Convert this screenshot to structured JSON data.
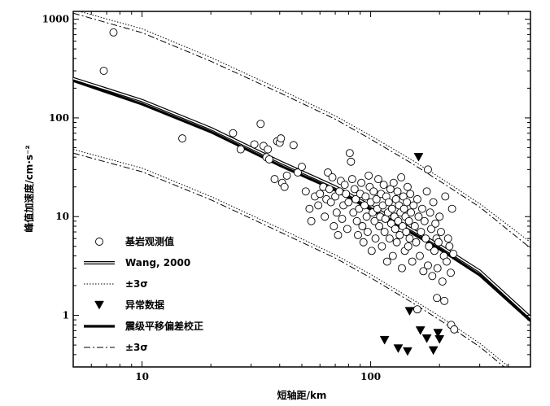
{
  "chart_data": {
    "type": "scatter",
    "xlabel": "短轴距/km",
    "ylabel": "峰值加速度/cm·s⁻²",
    "x_scale": "log",
    "y_scale": "log",
    "xlim": [
      5,
      500
    ],
    "ylim": [
      0.3,
      1200
    ],
    "x_ticks": [
      10,
      100
    ],
    "y_ticks": [
      1,
      10,
      100,
      1000
    ],
    "grid": false,
    "legend_position": "bottom-left",
    "series": [
      {
        "name": "基岩观测值",
        "kind": "scatter",
        "marker": "open-circle",
        "points": [
          [
            6.8,
            300
          ],
          [
            7.5,
            735
          ],
          [
            15,
            62
          ],
          [
            25,
            70
          ],
          [
            27,
            48
          ],
          [
            31,
            54
          ],
          [
            33,
            87
          ],
          [
            34,
            52
          ],
          [
            35,
            40
          ],
          [
            35.5,
            48
          ],
          [
            36,
            38
          ],
          [
            38,
            24
          ],
          [
            39,
            58
          ],
          [
            40,
            56
          ],
          [
            40.5,
            62
          ],
          [
            41,
            22
          ],
          [
            42,
            20
          ],
          [
            43,
            26
          ],
          [
            46,
            53
          ],
          [
            48,
            28
          ],
          [
            50,
            32
          ],
          [
            52,
            18
          ],
          [
            54,
            12
          ],
          [
            55,
            9
          ],
          [
            57,
            16
          ],
          [
            59,
            13
          ],
          [
            60,
            17
          ],
          [
            62,
            20
          ],
          [
            63,
            10
          ],
          [
            64,
            15
          ],
          [
            65,
            28
          ],
          [
            66,
            19
          ],
          [
            67,
            14
          ],
          [
            68,
            25
          ],
          [
            69,
            8
          ],
          [
            70,
            16
          ],
          [
            71,
            11
          ],
          [
            72,
            6.5
          ],
          [
            73,
            18
          ],
          [
            74,
            23
          ],
          [
            75,
            9.5
          ],
          [
            76,
            13
          ],
          [
            77,
            21
          ],
          [
            78,
            17
          ],
          [
            79,
            7.5
          ],
          [
            80,
            14
          ],
          [
            81,
            44
          ],
          [
            82,
            36
          ],
          [
            83,
            24
          ],
          [
            84,
            11
          ],
          [
            85,
            19
          ],
          [
            86,
            15
          ],
          [
            87,
            9
          ],
          [
            88,
            6.5
          ],
          [
            89,
            12
          ],
          [
            90,
            17
          ],
          [
            91,
            22
          ],
          [
            92,
            8
          ],
          [
            93,
            5.5
          ],
          [
            94,
            13
          ],
          [
            95,
            16
          ],
          [
            96,
            10
          ],
          [
            97,
            7
          ],
          [
            98,
            26
          ],
          [
            99,
            20
          ],
          [
            100,
            14
          ],
          [
            101,
            4.5
          ],
          [
            102,
            11
          ],
          [
            103,
            18
          ],
          [
            104,
            9
          ],
          [
            105,
            6
          ],
          [
            106,
            15
          ],
          [
            107,
            12
          ],
          [
            108,
            24
          ],
          [
            109,
            8
          ],
          [
            110,
            10
          ],
          [
            111,
            17
          ],
          [
            112,
            5
          ],
          [
            113,
            13
          ],
          [
            114,
            21
          ],
          [
            115,
            7
          ],
          [
            116,
            9.5
          ],
          [
            117,
            16
          ],
          [
            118,
            3.5
          ],
          [
            119,
            11
          ],
          [
            120,
            14
          ],
          [
            121,
            6
          ],
          [
            122,
            19
          ],
          [
            123,
            8.5
          ],
          [
            124,
            12
          ],
          [
            125,
            4
          ],
          [
            126,
            22
          ],
          [
            127,
            10
          ],
          [
            128,
            7.5
          ],
          [
            129,
            15
          ],
          [
            130,
            5.5
          ],
          [
            131,
            18
          ],
          [
            132,
            9
          ],
          [
            133,
            13
          ],
          [
            134,
            6.5
          ],
          [
            135,
            11
          ],
          [
            136,
            25
          ],
          [
            137,
            3
          ],
          [
            138,
            8
          ],
          [
            139,
            16
          ],
          [
            140,
            12
          ],
          [
            141,
            4.5
          ],
          [
            142,
            10
          ],
          [
            143,
            7
          ],
          [
            144,
            14
          ],
          [
            145,
            20
          ],
          [
            146,
            5
          ],
          [
            147,
            9
          ],
          [
            148,
            6
          ],
          [
            149,
            17
          ],
          [
            150,
            11
          ],
          [
            152,
            3.5
          ],
          [
            154,
            13
          ],
          [
            156,
            8
          ],
          [
            158,
            5.5
          ],
          [
            160,
            15
          ],
          [
            162,
            10
          ],
          [
            164,
            4
          ],
          [
            166,
            7
          ],
          [
            168,
            12
          ],
          [
            170,
            2.8
          ],
          [
            172,
            9
          ],
          [
            174,
            6
          ],
          [
            176,
            18
          ],
          [
            178,
            3.2
          ],
          [
            180,
            5
          ],
          [
            182,
            11
          ],
          [
            184,
            7.5
          ],
          [
            186,
            2.5
          ],
          [
            188,
            14
          ],
          [
            190,
            4.5
          ],
          [
            192,
            8.5
          ],
          [
            194,
            6
          ],
          [
            196,
            3
          ],
          [
            198,
            5.5
          ],
          [
            200,
            10
          ],
          [
            203,
            7
          ],
          [
            206,
            2.2
          ],
          [
            209,
            4
          ],
          [
            212,
            16
          ],
          [
            215,
            3.5
          ],
          [
            218,
            6
          ],
          [
            221,
            5
          ],
          [
            224,
            2.7
          ],
          [
            227,
            12
          ],
          [
            230,
            4.2
          ],
          [
            225,
            0.8
          ],
          [
            232,
            0.72
          ],
          [
            160,
            1.15
          ],
          [
            178,
            30
          ],
          [
            195,
            1.5
          ],
          [
            210,
            1.4
          ]
        ]
      },
      {
        "name": "Wang, 2000",
        "kind": "line",
        "style": "double-solid",
        "points": [
          [
            5,
            250
          ],
          [
            10,
            150
          ],
          [
            20,
            78
          ],
          [
            40,
            36
          ],
          [
            70,
            20
          ],
          [
            100,
            12.8
          ],
          [
            150,
            7.5
          ],
          [
            200,
            5.1
          ],
          [
            300,
            2.8
          ],
          [
            500,
            0.95
          ]
        ]
      },
      {
        "name": "±3σ",
        "kind": "line",
        "style": "dotted",
        "points": [
          [
            5,
            1250
          ],
          [
            10,
            800
          ],
          [
            20,
            410
          ],
          [
            40,
            195
          ],
          [
            70,
            105
          ],
          [
            100,
            66
          ],
          [
            150,
            38
          ],
          [
            200,
            25
          ],
          [
            300,
            13.5
          ],
          [
            500,
            5.5
          ]
        ]
      },
      {
        "name": "±3σ",
        "kind": "line",
        "style": "dotted",
        "points": [
          [
            5,
            48
          ],
          [
            10,
            31
          ],
          [
            20,
            16
          ],
          [
            40,
            7.6
          ],
          [
            70,
            4.1
          ],
          [
            100,
            2.6
          ],
          [
            150,
            1.48
          ],
          [
            200,
            0.98
          ],
          [
            300,
            0.52
          ],
          [
            500,
            0.2
          ]
        ]
      },
      {
        "name": "异常数据",
        "kind": "scatter",
        "marker": "filled-triangle-down",
        "points": [
          [
            162,
            40
          ],
          [
            148,
            1.1
          ],
          [
            115,
            0.56
          ],
          [
            132,
            0.46
          ],
          [
            145,
            0.43
          ],
          [
            165,
            0.7
          ],
          [
            176,
            0.58
          ],
          [
            188,
            0.44
          ],
          [
            197,
            0.66
          ],
          [
            200,
            0.57
          ]
        ]
      },
      {
        "name": "震级平移偏差校正",
        "kind": "line",
        "style": "thick-solid",
        "points": [
          [
            5,
            238
          ],
          [
            10,
            138
          ],
          [
            20,
            72
          ],
          [
            40,
            33
          ],
          [
            70,
            18.5
          ],
          [
            100,
            11.8
          ],
          [
            150,
            6.9
          ],
          [
            200,
            4.7
          ],
          [
            300,
            2.55
          ],
          [
            500,
            0.88
          ]
        ]
      },
      {
        "name": "±3σ",
        "kind": "line",
        "style": "dash-dot",
        "points": [
          [
            5,
            1150
          ],
          [
            10,
            730
          ],
          [
            20,
            375
          ],
          [
            40,
            180
          ],
          [
            70,
            97
          ],
          [
            100,
            61
          ],
          [
            150,
            35
          ],
          [
            200,
            23
          ],
          [
            300,
            12.5
          ],
          [
            500,
            4.8
          ]
        ]
      },
      {
        "name": "±3σ",
        "kind": "line",
        "style": "dash-dot",
        "points": [
          [
            5,
            44
          ],
          [
            10,
            28.5
          ],
          [
            20,
            14.8
          ],
          [
            40,
            7
          ],
          [
            70,
            3.8
          ],
          [
            100,
            2.4
          ],
          [
            150,
            1.37
          ],
          [
            200,
            0.9
          ],
          [
            300,
            0.48
          ],
          [
            500,
            0.18
          ]
        ]
      }
    ],
    "legend": [
      {
        "label": "基岩观测值",
        "symbol": "open-circle"
      },
      {
        "label": "Wang, 2000",
        "symbol": "double-solid"
      },
      {
        "label": "±3σ",
        "symbol": "dotted"
      },
      {
        "label": "异常数据",
        "symbol": "filled-triangle-down"
      },
      {
        "label": "震级平移偏差校正",
        "symbol": "thick-solid"
      },
      {
        "label": "±3σ",
        "symbol": "dash-dot"
      }
    ]
  }
}
